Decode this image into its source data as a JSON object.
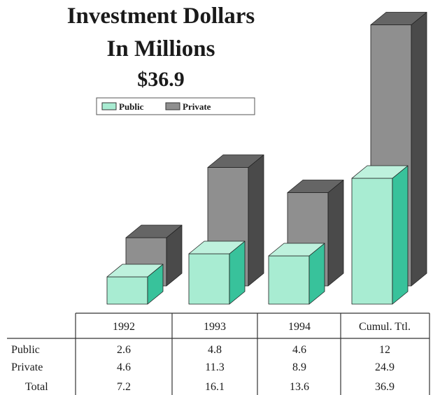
{
  "chart_data": {
    "type": "bar",
    "title": "Investment Dollars",
    "subtitle": "In Millions",
    "total_label": "$36.9",
    "categories": [
      "1992",
      "1993",
      "1994",
      "Cumul. Ttl."
    ],
    "series": [
      {
        "name": "Public",
        "values": [
          2.6,
          4.8,
          4.6,
          12
        ]
      },
      {
        "name": "Private",
        "values": [
          4.6,
          11.3,
          8.9,
          24.9
        ]
      }
    ],
    "legend_position": "top-center",
    "colors": {
      "public": "#a8ecd2",
      "public_side": "#38c29b",
      "private": "#8f8f8f",
      "private_side": "#4a4a4a"
    }
  },
  "table": {
    "rows": [
      {
        "label": "Public",
        "values": [
          "2.6",
          "4.8",
          "4.6",
          "12"
        ]
      },
      {
        "label": "Private",
        "values": [
          "4.6",
          "11.3",
          "8.9",
          "24.9"
        ]
      },
      {
        "label": "Total",
        "values": [
          "7.2",
          "16.1",
          "13.6",
          "36.9"
        ]
      }
    ]
  }
}
